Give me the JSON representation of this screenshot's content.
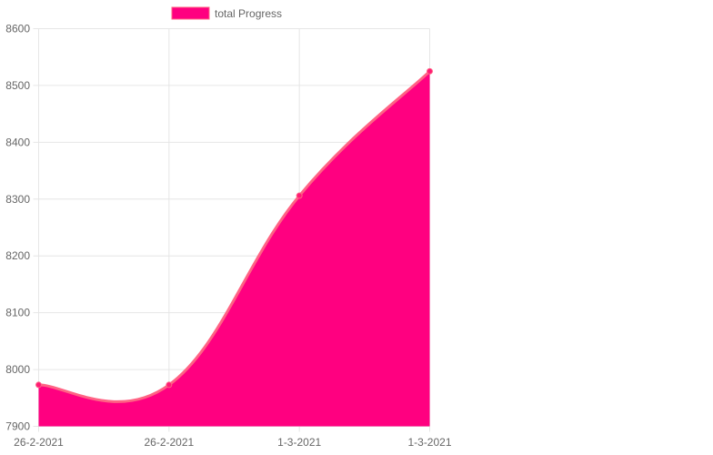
{
  "colors": {
    "area_fill": "#ff0080",
    "line": "#ff6384",
    "point": "#ff1a75",
    "grid": "#e6e6e6",
    "tick_text": "#666666"
  },
  "chart_data": {
    "type": "area",
    "categories": [
      "26-2-2021",
      "26-2-2021",
      "1-3-2021",
      "1-3-2021"
    ],
    "series": [
      {
        "name": "total Progress",
        "values": [
          7973,
          7973,
          8306,
          8525
        ]
      }
    ],
    "ylim": [
      7900,
      8600
    ],
    "yticks": [
      7900,
      8000,
      8100,
      8200,
      8300,
      8400,
      8500,
      8600
    ],
    "grid": true,
    "legend": "top",
    "curve": "smooth"
  }
}
